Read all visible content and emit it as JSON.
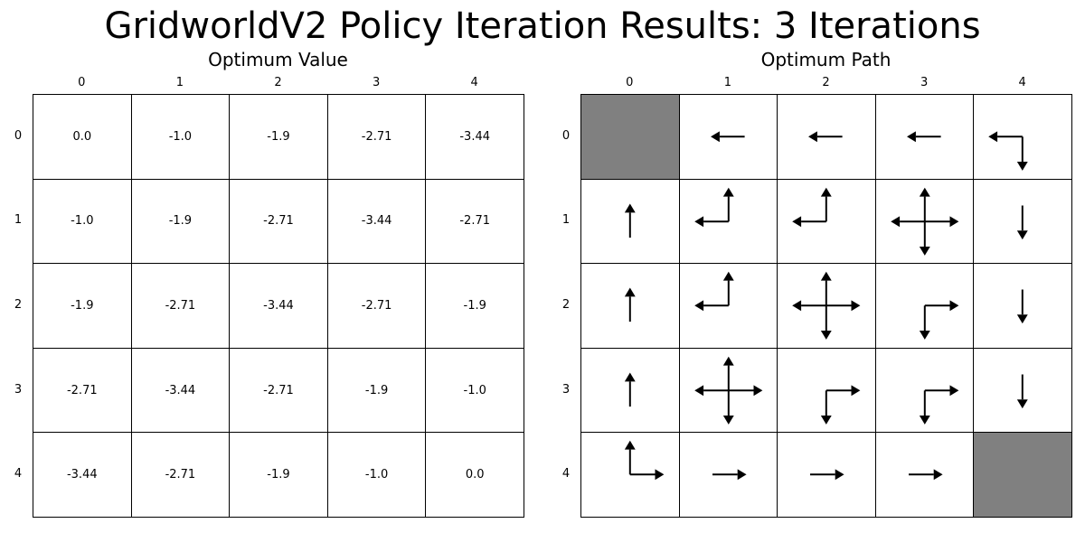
{
  "title": "GridworldV2 Policy Iteration Results: 3 Iterations",
  "value_panel": {
    "title": "Optimum Value",
    "col_labels": [
      "0",
      "1",
      "2",
      "3",
      "4"
    ],
    "row_labels": [
      "0",
      "1",
      "2",
      "3",
      "4"
    ],
    "values": [
      [
        "0.0",
        "-1.0",
        "-1.9",
        "-2.71",
        "-3.44"
      ],
      [
        "-1.0",
        "-1.9",
        "-2.71",
        "-3.44",
        "-2.71"
      ],
      [
        "-1.9",
        "-2.71",
        "-3.44",
        "-2.71",
        "-1.9"
      ],
      [
        "-2.71",
        "-3.44",
        "-2.71",
        "-1.9",
        "-1.0"
      ],
      [
        "-3.44",
        "-2.71",
        "-1.9",
        "-1.0",
        "0.0"
      ]
    ]
  },
  "path_panel": {
    "title": "Optimum Path",
    "col_labels": [
      "0",
      "1",
      "2",
      "3",
      "4"
    ],
    "row_labels": [
      "0",
      "1",
      "2",
      "3",
      "4"
    ],
    "terminal_color": "#808080",
    "arrows": [
      [
        [],
        [
          "left"
        ],
        [
          "left"
        ],
        [
          "left"
        ],
        [
          "left",
          "down"
        ]
      ],
      [
        [
          "up"
        ],
        [
          "up",
          "left"
        ],
        [
          "up",
          "left"
        ],
        [
          "up",
          "down",
          "left",
          "right"
        ],
        [
          "down"
        ]
      ],
      [
        [
          "up"
        ],
        [
          "up",
          "left"
        ],
        [
          "up",
          "down",
          "left",
          "right"
        ],
        [
          "down",
          "right"
        ],
        [
          "down"
        ]
      ],
      [
        [
          "up"
        ],
        [
          "up",
          "down",
          "left",
          "right"
        ],
        [
          "down",
          "right"
        ],
        [
          "down",
          "right"
        ],
        [
          "down"
        ]
      ],
      [
        [
          "up",
          "right"
        ],
        [
          "right"
        ],
        [
          "right"
        ],
        [
          "right"
        ],
        []
      ]
    ],
    "terminal_cells": [
      [
        0,
        0
      ],
      [
        4,
        4
      ]
    ]
  }
}
